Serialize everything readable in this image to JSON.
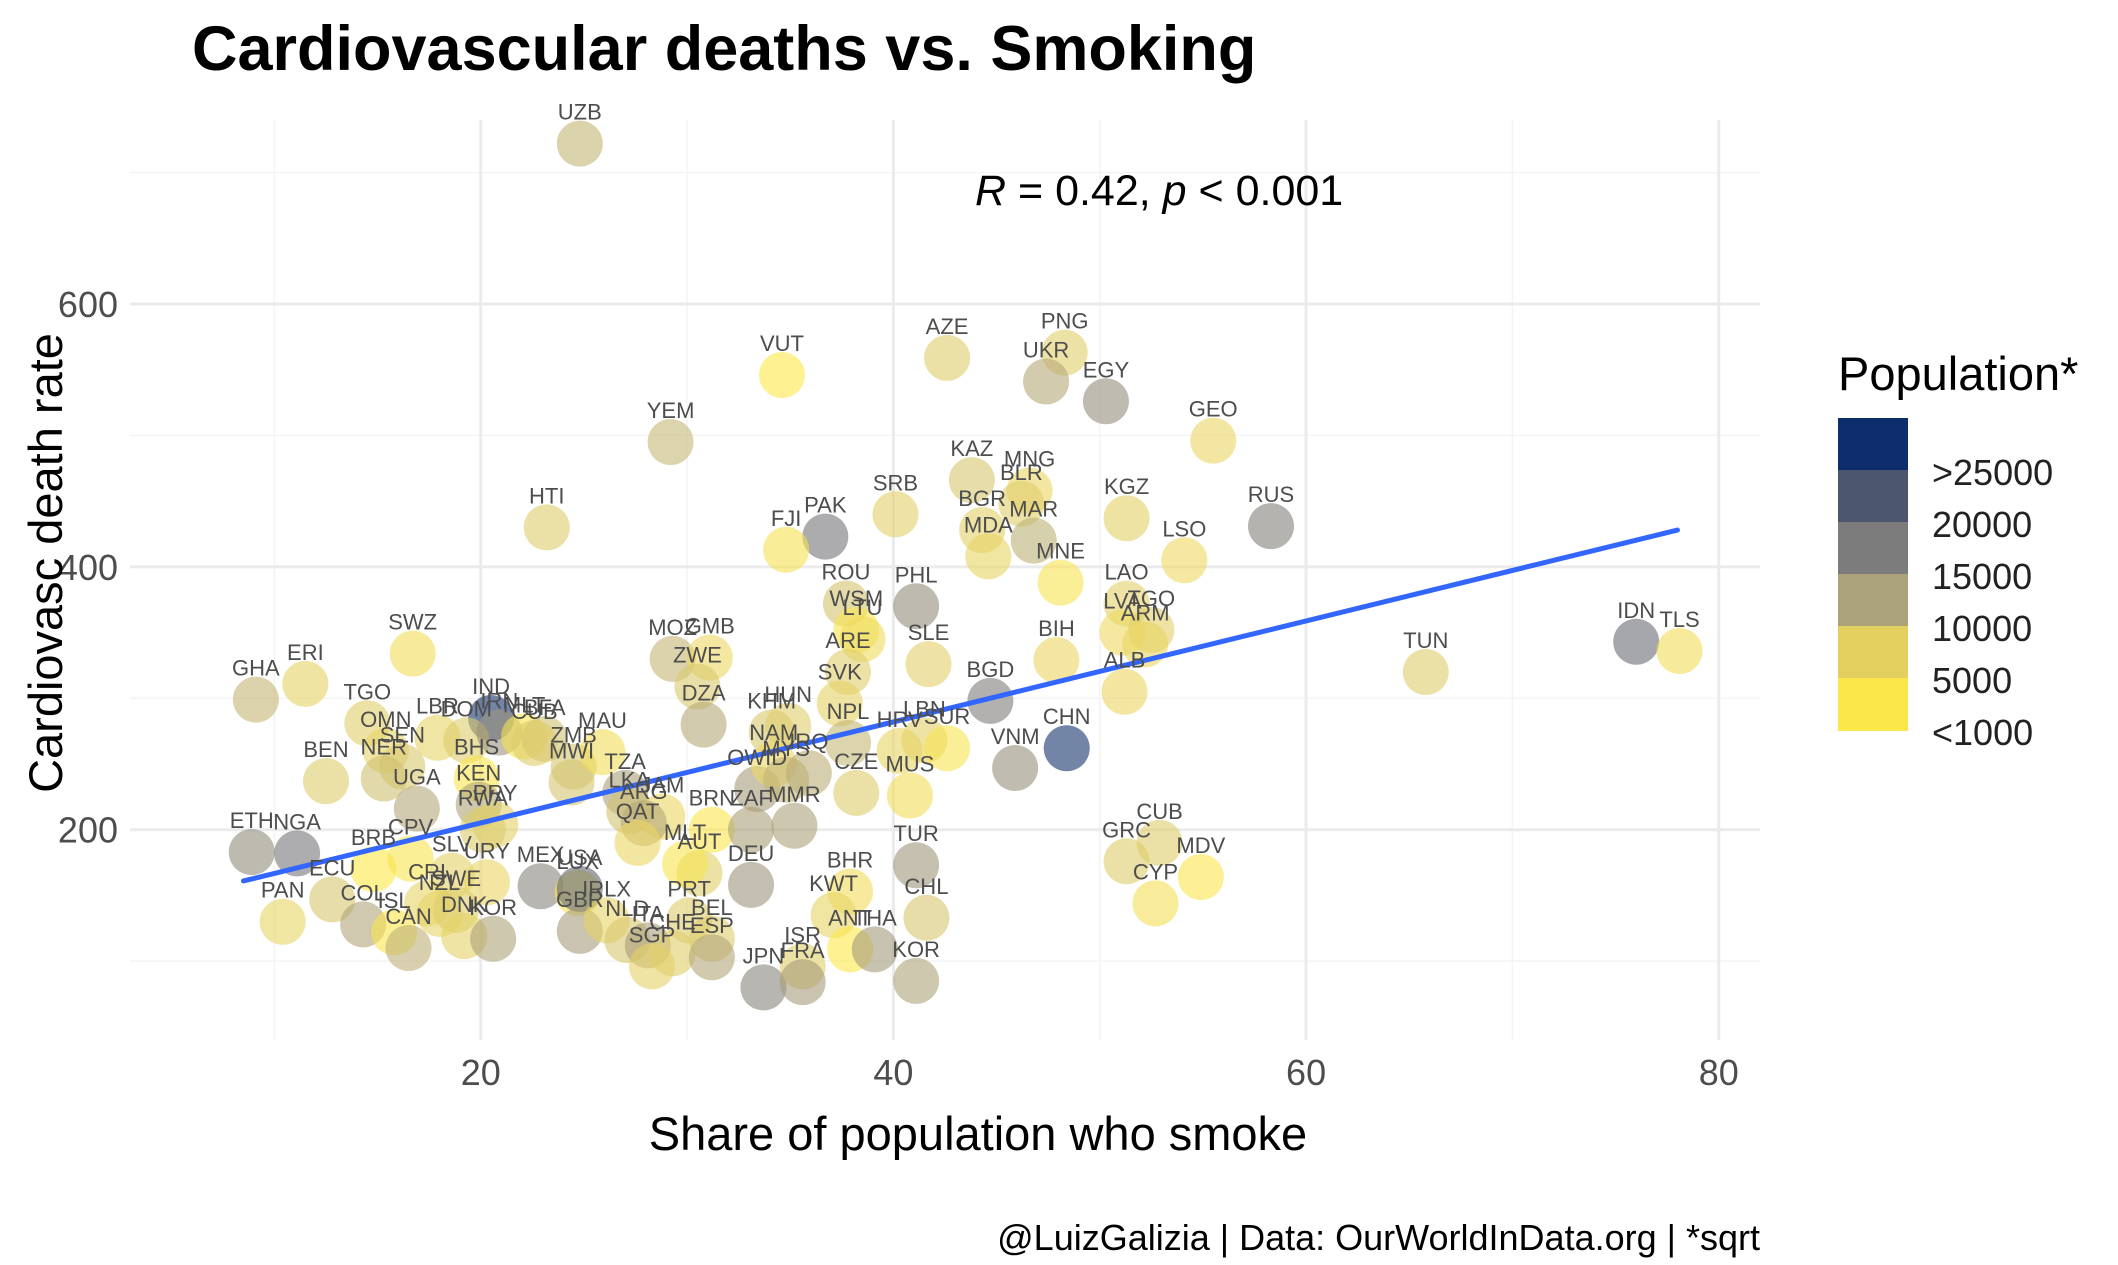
{
  "chart_data": {
    "type": "scatter",
    "title": "Cardiovascular deaths vs. Smoking",
    "xlabel": "Share of population who smoke",
    "ylabel": "Cardiovasc death rate",
    "xlim": [
      3,
      82
    ],
    "ylim": [
      40,
      740
    ],
    "x_ticks": [
      20,
      40,
      60,
      80
    ],
    "y_ticks": [
      200,
      400,
      600
    ],
    "grid": true,
    "annotation": {
      "R": "R",
      "eq1": " = 0.42, ",
      "p": "p",
      "eq2": " < 0.001"
    },
    "trend_line": {
      "x": [
        8.5,
        78
      ],
      "y": [
        161,
        428
      ],
      "color": "#3366ff"
    },
    "caption": "@LuizGalizia | Data: OurWorldInData.org | *sqrt",
    "legend": {
      "title": "Population*",
      "position": "right",
      "levels": [
        ">25000",
        "20000",
        "15000",
        "10000",
        "5000",
        "<1000"
      ],
      "colors": [
        "#0d2d6c",
        "#4b566e",
        "#7c7c7c",
        "#aba17a",
        "#e2cf5e",
        "#fbe74a"
      ]
    },
    "points": [
      {
        "label": "UZB",
        "x": 24.8,
        "y": 722,
        "pop": 5.6
      },
      {
        "label": "VUT",
        "x": 34.6,
        "y": 546,
        "pop": 0.5
      },
      {
        "label": "AZE",
        "x": 42.6,
        "y": 559,
        "pop": 3.2
      },
      {
        "label": "PNG",
        "x": 48.3,
        "y": 563,
        "pop": 2.9
      },
      {
        "label": "UKR",
        "x": 47.4,
        "y": 541,
        "pop": 6.6
      },
      {
        "label": "EGY",
        "x": 50.3,
        "y": 526,
        "pop": 10
      },
      {
        "label": "GEO",
        "x": 55.5,
        "y": 496,
        "pop": 1.9
      },
      {
        "label": "YEM",
        "x": 29.2,
        "y": 495,
        "pop": 5.4
      },
      {
        "label": "KAZ",
        "x": 43.8,
        "y": 466,
        "pop": 4.2
      },
      {
        "label": "MNG",
        "x": 46.6,
        "y": 458,
        "pop": 1.8
      },
      {
        "label": "BLR",
        "x": 46.2,
        "y": 448,
        "pop": 3.1
      },
      {
        "label": "KGZ",
        "x": 51.3,
        "y": 437,
        "pop": 2.5
      },
      {
        "label": "SRB",
        "x": 40.1,
        "y": 440,
        "pop": 2.6
      },
      {
        "label": "HTI",
        "x": 23.2,
        "y": 430,
        "pop": 3.3
      },
      {
        "label": "RUS",
        "x": 58.3,
        "y": 431,
        "pop": 12
      },
      {
        "label": "PAK",
        "x": 36.7,
        "y": 423,
        "pop": 14.5
      },
      {
        "label": "BGR",
        "x": 44.3,
        "y": 428,
        "pop": 2.6
      },
      {
        "label": "MAR",
        "x": 46.8,
        "y": 420,
        "pop": 6
      },
      {
        "label": "MDA",
        "x": 44.6,
        "y": 408,
        "pop": 2
      },
      {
        "label": "FJI",
        "x": 34.8,
        "y": 413,
        "pop": 0.9
      },
      {
        "label": "LSO",
        "x": 54.1,
        "y": 405,
        "pop": 1.4
      },
      {
        "label": "MNE",
        "x": 48.1,
        "y": 388,
        "pop": 0.8
      },
      {
        "label": "ROU",
        "x": 37.7,
        "y": 372,
        "pop": 4.4
      },
      {
        "label": "PHL",
        "x": 41.1,
        "y": 370,
        "pop": 10.3
      },
      {
        "label": "WSM",
        "x": 38.2,
        "y": 352,
        "pop": 0.7
      },
      {
        "label": "LTU",
        "x": 38.5,
        "y": 345,
        "pop": 1.3
      },
      {
        "label": "LAO",
        "x": 51.3,
        "y": 372,
        "pop": 2.6
      },
      {
        "label": "LVA",
        "x": 51.1,
        "y": 350,
        "pop": 1.4
      },
      {
        "label": "TGO",
        "x": 52.5,
        "y": 352,
        "pop": 2.8
      },
      {
        "label": "ARM",
        "x": 52.2,
        "y": 341,
        "pop": 1.7
      },
      {
        "label": "SWZ",
        "x": 16.7,
        "y": 334,
        "pop": 1.1
      },
      {
        "label": "MOZ",
        "x": 29.3,
        "y": 330,
        "pop": 5.5
      },
      {
        "label": "GMB",
        "x": 31.1,
        "y": 331,
        "pop": 1.5
      },
      {
        "label": "ZWE",
        "x": 30.5,
        "y": 309,
        "pop": 3.9
      },
      {
        "label": "ARE",
        "x": 37.8,
        "y": 320,
        "pop": 3.1
      },
      {
        "label": "SLE",
        "x": 41.7,
        "y": 326,
        "pop": 2.8
      },
      {
        "label": "BIH",
        "x": 47.9,
        "y": 329,
        "pop": 1.9
      },
      {
        "label": "ALB",
        "x": 51.2,
        "y": 305,
        "pop": 1.7
      },
      {
        "label": "GHA",
        "x": 9.1,
        "y": 299,
        "pop": 5.5
      },
      {
        "label": "ERI",
        "x": 11.5,
        "y": 311,
        "pop": 2.3
      },
      {
        "label": "TUN",
        "x": 65.8,
        "y": 320,
        "pop": 3.4
      },
      {
        "label": "IDN",
        "x": 76,
        "y": 343,
        "pop": 16.3
      },
      {
        "label": "TLS",
        "x": 78.1,
        "y": 336,
        "pop": 1.1
      },
      {
        "label": "BGD",
        "x": 44.7,
        "y": 298,
        "pop": 12.7
      },
      {
        "label": "SVK",
        "x": 37.4,
        "y": 296,
        "pop": 2.3
      },
      {
        "label": "DZA",
        "x": 30.8,
        "y": 280,
        "pop": 6.6
      },
      {
        "label": "KHM",
        "x": 34.1,
        "y": 274,
        "pop": 4
      },
      {
        "label": "HUN",
        "x": 34.9,
        "y": 279,
        "pop": 3.1
      },
      {
        "label": "NPL",
        "x": 37.8,
        "y": 266,
        "pop": 5.4
      },
      {
        "label": "LBN",
        "x": 41.5,
        "y": 268,
        "pop": 2.6
      },
      {
        "label": "HRV",
        "x": 40.3,
        "y": 260,
        "pop": 2
      },
      {
        "label": "CHN",
        "x": 48.4,
        "y": 262,
        "pop": 37
      },
      {
        "label": "VNM",
        "x": 45.9,
        "y": 247,
        "pop": 9.8
      },
      {
        "label": "SUR",
        "x": 42.6,
        "y": 262,
        "pop": 0.8
      },
      {
        "label": "IND",
        "x": 20.5,
        "y": 285,
        "pop": 36.5
      },
      {
        "label": "TGO",
        "x": 14.5,
        "y": 281,
        "pop": 2.9
      },
      {
        "label": "LBR",
        "x": 17.9,
        "y": 270,
        "pop": 2.2
      },
      {
        "label": "DOM",
        "x": 19.3,
        "y": 268,
        "pop": 3.3
      },
      {
        "label": "IRN",
        "x": 20.9,
        "y": 274,
        "pop": 9.2
      },
      {
        "label": "MLT",
        "x": 22.1,
        "y": 271,
        "pop": 0.7
      },
      {
        "label": "BFA",
        "x": 23.1,
        "y": 269,
        "pop": 4.5
      },
      {
        "label": "CUB",
        "x": 22.6,
        "y": 266,
        "pop": 3.4
      },
      {
        "label": "OMN",
        "x": 15.4,
        "y": 260,
        "pop": 2.2
      },
      {
        "label": "SEN",
        "x": 16.2,
        "y": 248,
        "pop": 4
      },
      {
        "label": "NER",
        "x": 15.3,
        "y": 239,
        "pop": 4.7
      },
      {
        "label": "BEN",
        "x": 12.5,
        "y": 237,
        "pop": 3.4
      },
      {
        "label": "UGA",
        "x": 16.9,
        "y": 216,
        "pop": 6.7
      },
      {
        "label": "BHS",
        "x": 19.8,
        "y": 239,
        "pop": 0.6
      },
      {
        "label": "KEN",
        "x": 19.9,
        "y": 219,
        "pop": 7.2
      },
      {
        "label": "PRY",
        "x": 20.7,
        "y": 204,
        "pop": 2.6
      },
      {
        "label": "RWA",
        "x": 20.1,
        "y": 200,
        "pop": 3.5
      },
      {
        "label": "ZMB",
        "x": 24.5,
        "y": 248,
        "pop": 4.2
      },
      {
        "label": "MWI",
        "x": 24.4,
        "y": 236,
        "pop": 4.3
      },
      {
        "label": "MAU",
        "x": 25.9,
        "y": 259,
        "pop": 1.1
      },
      {
        "label": "TZA",
        "x": 27,
        "y": 228,
        "pop": 7.6
      },
      {
        "label": "LKA",
        "x": 27.2,
        "y": 214,
        "pop": 4.6
      },
      {
        "label": "JAM",
        "x": 28.8,
        "y": 210,
        "pop": 1.7
      },
      {
        "label": "ARG",
        "x": 27.9,
        "y": 205,
        "pop": 6.7
      },
      {
        "label": "QAT",
        "x": 27.6,
        "y": 190,
        "pop": 1.6
      },
      {
        "label": "BRN",
        "x": 31.2,
        "y": 200,
        "pop": 0.6
      },
      {
        "label": "ZAF",
        "x": 33.1,
        "y": 200,
        "pop": 7.6
      },
      {
        "label": "MMR",
        "x": 35.2,
        "y": 203,
        "pop": 7.3
      },
      {
        "label": "OWID",
        "x": 33.4,
        "y": 231,
        "pop": 8
      },
      {
        "label": "NAM",
        "x": 34.2,
        "y": 250,
        "pop": 1.5
      },
      {
        "label": "MYS",
        "x": 34.8,
        "y": 238,
        "pop": 5.7
      },
      {
        "label": "IRQ",
        "x": 35.9,
        "y": 243,
        "pop": 6.2
      },
      {
        "label": "CZE",
        "x": 38.2,
        "y": 228,
        "pop": 3.3
      },
      {
        "label": "MUS",
        "x": 40.8,
        "y": 226,
        "pop": 1.1
      },
      {
        "label": "ETH",
        "x": 8.9,
        "y": 183,
        "pop": 10.4
      },
      {
        "label": "NGA",
        "x": 11.1,
        "y": 182,
        "pop": 13.9
      },
      {
        "label": "BRB",
        "x": 14.8,
        "y": 170,
        "pop": 0.5
      },
      {
        "label": "CPV",
        "x": 16.6,
        "y": 178,
        "pop": 0.7
      },
      {
        "label": "SLV",
        "x": 18.6,
        "y": 165,
        "pop": 2.5
      },
      {
        "label": "URY",
        "x": 20.3,
        "y": 160,
        "pop": 1.9
      },
      {
        "label": "ECU",
        "x": 12.8,
        "y": 147,
        "pop": 4.1
      },
      {
        "label": "PAN",
        "x": 10.4,
        "y": 130,
        "pop": 2
      },
      {
        "label": "COL",
        "x": 14.3,
        "y": 128,
        "pop": 7
      },
      {
        "label": "ISL",
        "x": 15.8,
        "y": 122,
        "pop": 0.6
      },
      {
        "label": "CRI",
        "x": 17.4,
        "y": 144,
        "pop": 2.2
      },
      {
        "label": "NZL",
        "x": 18,
        "y": 136,
        "pop": 2.2
      },
      {
        "label": "SWE",
        "x": 18.8,
        "y": 139,
        "pop": 3.2
      },
      {
        "label": "DNK",
        "x": 19.2,
        "y": 119,
        "pop": 2.4
      },
      {
        "label": "KOR",
        "x": 20.6,
        "y": 117,
        "pop": 7.2
      },
      {
        "label": "CAN",
        "x": 16.5,
        "y": 110,
        "pop": 6.1
      },
      {
        "label": "MEX",
        "x": 22.9,
        "y": 157,
        "pop": 11.2
      },
      {
        "label": "LUX",
        "x": 24.7,
        "y": 152,
        "pop": 0.8
      },
      {
        "label": "USA",
        "x": 24.8,
        "y": 155,
        "pop": 18
      },
      {
        "label": "GBR",
        "x": 24.8,
        "y": 123,
        "pop": 8.2
      },
      {
        "label": "IRLX",
        "x": 26.1,
        "y": 131,
        "pop": 2.2
      },
      {
        "label": "NLD",
        "x": 27.1,
        "y": 116,
        "pop": 4.1
      },
      {
        "label": "ITA",
        "x": 28.1,
        "y": 112,
        "pop": 7.7
      },
      {
        "label": "SGP",
        "x": 28.3,
        "y": 96,
        "pop": 2.4
      },
      {
        "label": "CHE",
        "x": 29.3,
        "y": 106,
        "pop": 2.9
      },
      {
        "label": "PRT",
        "x": 30.1,
        "y": 131,
        "pop": 3.2
      },
      {
        "label": "BEL",
        "x": 31.2,
        "y": 117,
        "pop": 3.4
      },
      {
        "label": "ESP",
        "x": 31.2,
        "y": 103,
        "pop": 6.8
      },
      {
        "label": "AUT",
        "x": 30.6,
        "y": 167,
        "pop": 3
      },
      {
        "label": "MLT",
        "x": 29.9,
        "y": 174,
        "pop": 0.7
      },
      {
        "label": "DEU",
        "x": 33.1,
        "y": 158,
        "pop": 9.1
      },
      {
        "label": "JPN",
        "x": 33.7,
        "y": 80,
        "pop": 11.2
      },
      {
        "label": "ISR",
        "x": 35.6,
        "y": 96,
        "pop": 2.9
      },
      {
        "label": "FRA",
        "x": 35.6,
        "y": 84,
        "pop": 8.2
      },
      {
        "label": "BHR",
        "x": 37.9,
        "y": 153,
        "pop": 1.2
      },
      {
        "label": "KWT",
        "x": 37.1,
        "y": 135,
        "pop": 2
      },
      {
        "label": "ANT",
        "x": 37.9,
        "y": 109,
        "pop": 0.3
      },
      {
        "label": "THA",
        "x": 39.1,
        "y": 109,
        "pop": 8.4
      },
      {
        "label": "KOR",
        "x": 41.1,
        "y": 85,
        "pop": 7.2
      },
      {
        "label": "TUR",
        "x": 41.1,
        "y": 173,
        "pop": 9
      },
      {
        "label": "CHL",
        "x": 41.6,
        "y": 133,
        "pop": 4.2
      },
      {
        "label": "GRC",
        "x": 51.3,
        "y": 176,
        "pop": 3.2
      },
      {
        "label": "CUB",
        "x": 52.9,
        "y": 190,
        "pop": 3.4
      },
      {
        "label": "MDV",
        "x": 54.9,
        "y": 164,
        "pop": 0.6
      },
      {
        "label": "CYP",
        "x": 52.7,
        "y": 144,
        "pop": 1
      }
    ]
  }
}
